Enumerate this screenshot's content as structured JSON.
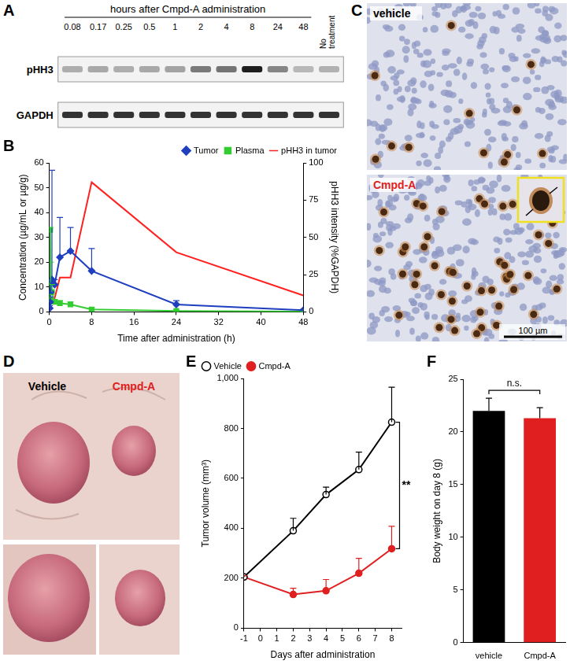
{
  "panels": {
    "A": {
      "label": "A",
      "header": "hours after Cmpd-A administration",
      "lanes": [
        "0.08",
        "0.17",
        "0.25",
        "0.5",
        "1",
        "2",
        "4",
        "8",
        "24",
        "48",
        "No treatment"
      ],
      "rows": [
        {
          "name": "pHH3",
          "band_intensity": [
            30,
            32,
            30,
            32,
            35,
            55,
            58,
            100,
            50,
            25,
            28
          ]
        },
        {
          "name": "GAPDH",
          "band_intensity": [
            90,
            90,
            90,
            90,
            90,
            90,
            90,
            90,
            90,
            90,
            90
          ]
        }
      ]
    },
    "C": {
      "label": "C",
      "images": [
        {
          "name": "vehicle",
          "color": "#000000"
        },
        {
          "name": "Cmpd-A",
          "color": "#e02020"
        }
      ],
      "scale_bar": "100 µm"
    },
    "D": {
      "label": "D",
      "images": [
        {
          "name": "Vehicle",
          "color": "#000000"
        },
        {
          "name": "Cmpd-A",
          "color": "#e02020"
        }
      ]
    }
  },
  "chart_data": [
    {
      "panel": "B",
      "type": "line",
      "x_label": "Time after administration (h)",
      "y_label": "Concentration (µg/mL or µg/g)",
      "y2_label": "pHH3 intensity (%GAPDH)",
      "x": [
        0.08,
        0.17,
        0.25,
        0.5,
        1,
        2,
        4,
        8,
        24,
        48
      ],
      "series": [
        {
          "name": "Tumor",
          "color": "#1f3fbf",
          "marker": "diamond",
          "values": [
            1.5,
            4,
            8,
            13,
            11,
            22,
            24.5,
            16.5,
            3,
            0.7
          ],
          "errors": [
            1,
            2,
            4,
            44,
            2,
            16,
            9.5,
            9,
            1.5,
            0.3
          ]
        },
        {
          "name": "Plasma",
          "color": "#33cc33",
          "marker": "square",
          "values": [
            5,
            33,
            12,
            8,
            4,
            3.5,
            3,
            1,
            0.4,
            0.1
          ],
          "errors": [
            2,
            1,
            8,
            3,
            1,
            1,
            1,
            0.5,
            0.3,
            0.1
          ]
        },
        {
          "name": "pHH3 in tumor",
          "color": "#ff2020",
          "marker": "none",
          "axis": "y2",
          "values": [
            9,
            9,
            9,
            9,
            9,
            23,
            23,
            87,
            40,
            11
          ]
        }
      ],
      "xlim": [
        0,
        48
      ],
      "xticks": [
        0,
        8,
        16,
        24,
        32,
        40,
        48
      ],
      "ylim": [
        0,
        60
      ],
      "yticks": [
        0,
        10,
        20,
        30,
        40,
        50,
        60
      ],
      "y2lim": [
        0,
        100
      ],
      "y2ticks": [
        0,
        25,
        50,
        75,
        100
      ],
      "grid": false,
      "legend": "upper right"
    },
    {
      "panel": "E",
      "type": "line",
      "x_label": "Days after administration",
      "y_label": "Tumor volume (mm³)",
      "x": [
        -1,
        2,
        4,
        6,
        8
      ],
      "series": [
        {
          "name": "Vehicle",
          "color": "#000000",
          "marker": "circle-open",
          "values": [
            205,
            390,
            535,
            635,
            825
          ],
          "errors": [
            5,
            50,
            30,
            70,
            140
          ]
        },
        {
          "name": "Cmpd-A",
          "color": "#e02020",
          "marker": "circle",
          "values": [
            205,
            135,
            150,
            220,
            318
          ],
          "errors": [
            5,
            25,
            45,
            60,
            90
          ]
        }
      ],
      "xlim": [
        -1,
        8.6
      ],
      "xticks": [
        -1,
        0,
        1,
        2,
        3,
        4,
        5,
        6,
        7,
        8
      ],
      "ylim": [
        0,
        1000
      ],
      "yticks": [
        0,
        200,
        400,
        600,
        800,
        1000
      ],
      "grid": false,
      "legend": "upper left",
      "annotations": [
        "**"
      ]
    },
    {
      "panel": "F",
      "type": "bar",
      "y_label": "Body weight on day 8 (g)",
      "categories": [
        "vehicle",
        "Cmpd-A"
      ],
      "values": [
        22,
        21.3
      ],
      "errors": [
        1.2,
        1.0
      ],
      "colors": [
        "#000000",
        "#e02020"
      ],
      "ylim": [
        0,
        25
      ],
      "yticks": [
        0,
        5,
        10,
        15,
        20,
        25
      ],
      "grid": false,
      "annotations": [
        "n.s."
      ]
    }
  ]
}
